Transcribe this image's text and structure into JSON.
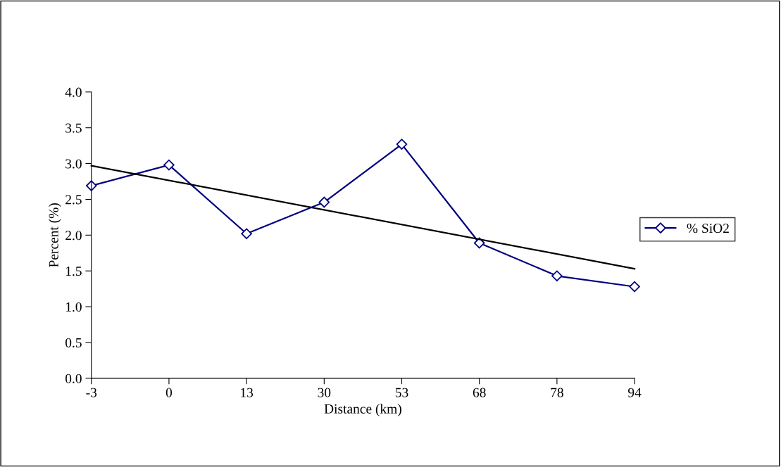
{
  "chart_data": {
    "type": "line",
    "xlabel": "Distance (km)",
    "ylabel": "Percent (%)",
    "categories": [
      "-3",
      "0",
      "13",
      "30",
      "53",
      "68",
      "78",
      "94"
    ],
    "series": [
      {
        "name": "% SiO2",
        "color": "#000080",
        "marker": "diamond",
        "values": [
          2.69,
          2.98,
          2.02,
          2.46,
          3.27,
          1.89,
          1.43,
          1.28
        ]
      },
      {
        "color": "#000000",
        "marker": "none",
        "values": [
          2.97,
          null,
          null,
          null,
          null,
          null,
          null,
          1.53
        ]
      }
    ],
    "ylim": [
      0,
      4
    ],
    "yticks": [
      {
        "value": 0,
        "label": "0.0"
      },
      0.5,
      {
        "value": 1,
        "label": "1.0"
      },
      1.5,
      {
        "value": 2,
        "label": "2.0"
      },
      2.5,
      {
        "value": 3,
        "label": "3.0"
      },
      3.5,
      {
        "value": 4,
        "label": "4.0"
      }
    ],
    "legend": "right",
    "grid": false
  }
}
